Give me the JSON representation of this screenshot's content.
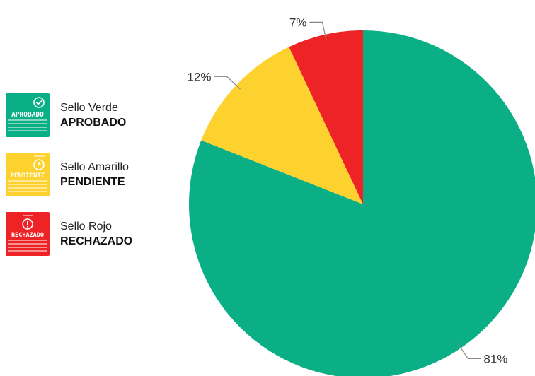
{
  "chart_data": {
    "type": "pie",
    "slices": [
      {
        "label": "Sello Verde APROBADO",
        "value": 81,
        "display": "81%",
        "color": "#0BAF85"
      },
      {
        "label": "Sello Amarillo PENDIENTE",
        "value": 12,
        "display": "12%",
        "color": "#FDD22E"
      },
      {
        "label": "Sello Rojo RECHAZADO",
        "value": 7,
        "display": "7%",
        "color": "#EE2326"
      }
    ],
    "legend": "left",
    "title": ""
  },
  "legend": [
    {
      "name": "Sello Verde",
      "status": "APROBADO",
      "badge_text": "APROBADO",
      "color": "#0BAF85",
      "icon": "check-circle-icon"
    },
    {
      "name": "Sello Amarillo",
      "status": "PENDIENTE",
      "badge_text": "PENDIENTE",
      "color": "#FDD22E",
      "icon": "clock-circle-icon"
    },
    {
      "name": "Sello Rojo",
      "status": "RECHAZADO",
      "badge_text": "RECHAZADO",
      "color": "#EE2326",
      "icon": "exclamation-circle-icon"
    }
  ]
}
